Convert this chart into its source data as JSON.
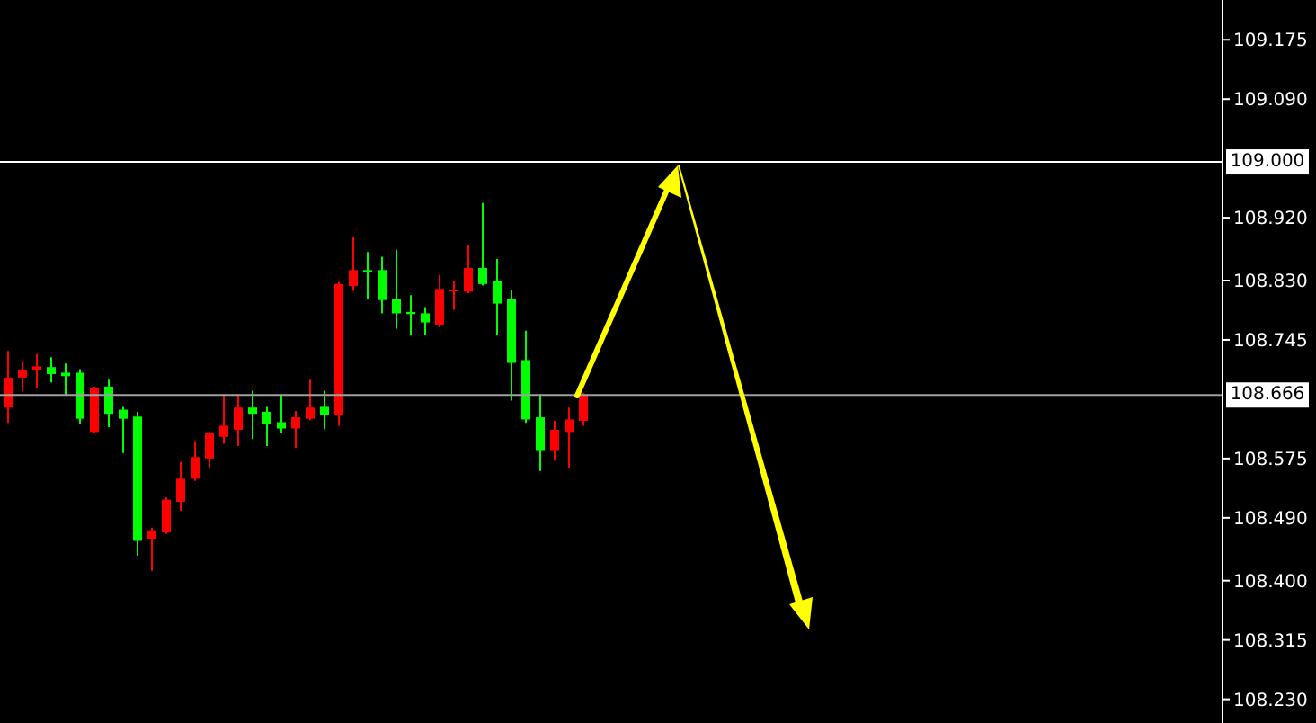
{
  "chart_data": {
    "type": "candlestick",
    "categories": [
      null,
      null,
      null,
      null,
      null,
      null,
      null,
      null,
      null,
      null,
      null,
      null,
      null,
      null,
      null,
      null,
      null,
      null,
      null,
      null,
      null,
      null,
      null,
      null,
      null,
      null,
      null,
      null,
      null,
      null,
      null,
      null,
      null,
      null,
      null,
      null,
      null,
      null,
      null,
      null,
      null,
      null,
      null,
      null,
      null,
      null,
      null,
      null,
      null,
      null,
      null,
      null,
      null,
      null,
      null,
      null,
      null,
      null,
      null,
      null,
      null,
      null,
      null,
      null,
      null,
      null,
      null,
      null,
      null,
      null,
      null,
      null,
      null,
      null,
      null,
      null,
      null,
      null,
      null,
      null,
      null,
      null,
      null,
      null,
      null
    ],
    "ohlc": [
      [
        108.648,
        108.729,
        108.626,
        108.691
      ],
      [
        108.691,
        108.715,
        108.671,
        108.702
      ],
      [
        108.701,
        108.725,
        108.676,
        108.707
      ],
      [
        108.706,
        108.72,
        108.684,
        108.696
      ],
      [
        108.698,
        108.711,
        108.665,
        108.693
      ],
      [
        108.698,
        108.703,
        108.625,
        108.632
      ],
      [
        108.613,
        108.678,
        108.611,
        108.676
      ],
      [
        108.678,
        108.688,
        108.62,
        108.639
      ],
      [
        108.645,
        108.649,
        108.583,
        108.632
      ],
      [
        108.635,
        108.642,
        108.436,
        108.457
      ],
      [
        108.46,
        108.476,
        108.414,
        108.472
      ],
      [
        108.469,
        108.519,
        108.467,
        108.516
      ],
      [
        108.513,
        108.57,
        108.5,
        108.546
      ],
      [
        108.546,
        108.6,
        108.543,
        108.577
      ],
      [
        108.575,
        108.613,
        108.562,
        108.611
      ],
      [
        108.606,
        108.667,
        108.596,
        108.622
      ],
      [
        108.616,
        108.667,
        108.593,
        108.648
      ],
      [
        108.648,
        108.672,
        108.603,
        108.639
      ],
      [
        108.642,
        108.649,
        108.593,
        108.624
      ],
      [
        108.627,
        108.665,
        108.611,
        108.618
      ],
      [
        108.618,
        108.643,
        108.59,
        108.634
      ],
      [
        108.632,
        108.688,
        108.63,
        108.648
      ],
      [
        108.649,
        108.672,
        108.617,
        108.637
      ],
      [
        108.637,
        108.828,
        108.622,
        108.825
      ],
      [
        108.822,
        108.892,
        108.815,
        108.845
      ],
      [
        108.845,
        108.871,
        108.804,
        108.843
      ],
      [
        108.845,
        108.864,
        108.783,
        108.802
      ],
      [
        108.804,
        108.874,
        108.761,
        108.783
      ],
      [
        108.785,
        108.809,
        108.752,
        108.782
      ],
      [
        108.783,
        108.792,
        108.752,
        108.77
      ],
      [
        108.767,
        108.838,
        108.763,
        108.818
      ],
      [
        108.815,
        108.83,
        108.788,
        108.817
      ],
      [
        108.814,
        108.881,
        108.812,
        108.848
      ],
      [
        108.848,
        108.941,
        108.823,
        108.825
      ],
      [
        108.83,
        108.861,
        108.752,
        108.797
      ],
      [
        108.804,
        108.817,
        108.658,
        108.712
      ],
      [
        108.716,
        108.758,
        108.626,
        108.631
      ],
      [
        108.634,
        108.667,
        108.557,
        108.587
      ],
      [
        108.587,
        108.629,
        108.572,
        108.616
      ],
      [
        108.613,
        108.648,
        108.562,
        108.631
      ],
      [
        108.629,
        108.669,
        108.622,
        108.667
      ],
      null,
      null,
      null,
      null,
      null,
      null,
      null,
      null,
      null,
      null,
      null,
      null,
      null,
      null,
      null,
      null,
      null,
      null,
      null,
      null,
      null,
      null,
      null,
      null,
      null,
      null,
      null,
      null,
      null,
      null,
      null,
      null,
      null,
      null,
      null,
      null,
      null,
      null,
      null,
      null,
      null,
      null,
      null,
      null
    ],
    "colors": [
      "#ff0000",
      "#ff0000",
      "#ff0000",
      "#00ff00",
      "#00ff00",
      "#00ff00",
      "#ff0000",
      "#00ff00",
      "#00ff00",
      "#00ff00",
      "#ff0000",
      "#ff0000",
      "#ff0000",
      "#ff0000",
      "#ff0000",
      "#ff0000",
      "#ff0000",
      "#00ff00",
      "#00ff00",
      "#00ff00",
      "#ff0000",
      "#ff0000",
      "#00ff00",
      "#ff0000",
      "#ff0000",
      "#00ff00",
      "#00ff00",
      "#00ff00",
      "#00ff00",
      "#00ff00",
      "#ff0000",
      "#ff0000",
      "#ff0000",
      "#00ff00",
      "#00ff00",
      "#00ff00",
      "#00ff00",
      "#00ff00",
      "#ff0000",
      "#ff0000",
      "#ff0000",
      null,
      null,
      null,
      null,
      null,
      null,
      null,
      null,
      null,
      null,
      null,
      null,
      null,
      null,
      null,
      null,
      null,
      null,
      null,
      null,
      null,
      null,
      null,
      null,
      null,
      null,
      null,
      null,
      null,
      null,
      null,
      null,
      null,
      null,
      null,
      null,
      null,
      null,
      null,
      null,
      null,
      null,
      null,
      null
    ],
    "ylim": [
      108.196,
      109.232
    ],
    "yticks": [
      {
        "value": 109.175,
        "label": "109.175"
      },
      {
        "value": 109.09,
        "label": "109.090"
      },
      {
        "value": 108.92,
        "label": "108.920"
      },
      {
        "value": 108.83,
        "label": "108.830"
      },
      {
        "value": 108.745,
        "label": "108.745"
      },
      {
        "value": 108.575,
        "label": "108.575"
      },
      {
        "value": 108.49,
        "label": "108.490"
      },
      {
        "value": 108.4,
        "label": "108.400"
      },
      {
        "value": 108.315,
        "label": "108.315"
      },
      {
        "value": 108.23,
        "label": "108.230"
      }
    ],
    "ref_lines": [
      {
        "axis": "y",
        "value": 109.0,
        "label": "109.000",
        "color": "#ffffff"
      },
      {
        "axis": "y",
        "value": 108.666,
        "label": "108.666",
        "color": "#a0a0a0"
      }
    ],
    "tick_labels": "y",
    "grid": false,
    "legend": false
  }
}
